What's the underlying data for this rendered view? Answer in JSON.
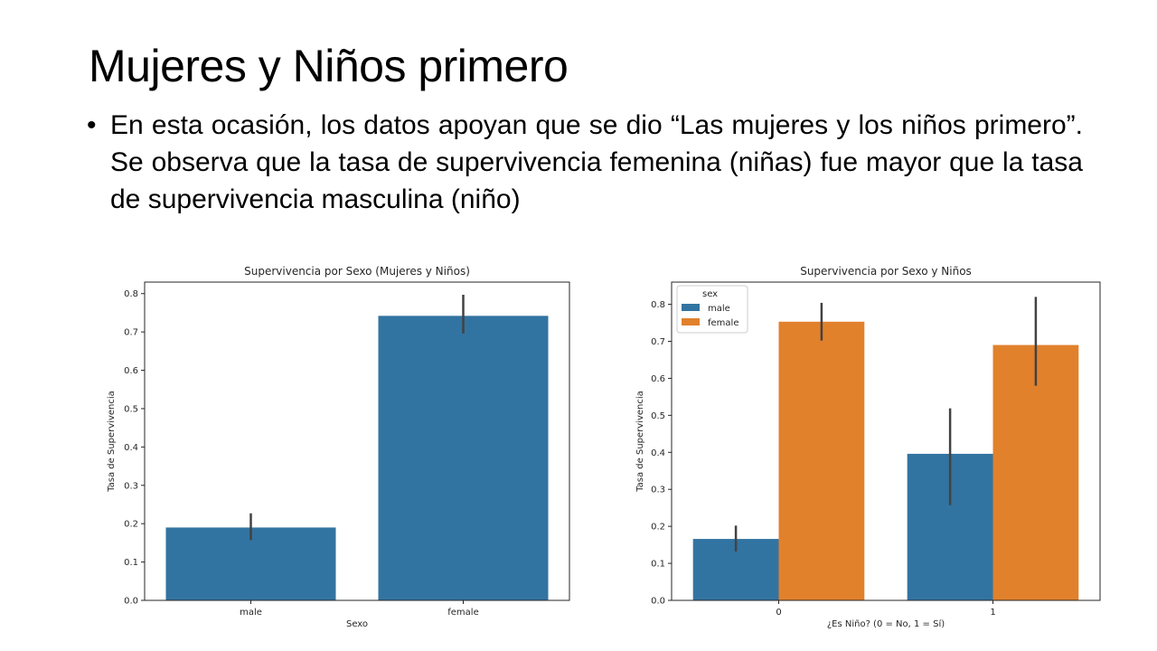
{
  "slide": {
    "title": "Mujeres y Niños primero",
    "bullet": "En esta ocasión, los datos apoyan que se dio “Las mujeres y los niños primero”. Se observa que la tasa de supervivencia femenina (niñas) fue mayor que la tasa de supervivencia masculina (niño)"
  },
  "colors": {
    "male": "#3274a1",
    "female": "#e1812c",
    "errorbar": "#424242"
  },
  "chart_data": [
    {
      "type": "bar",
      "title": "Supervivencia por Sexo (Mujeres y Niños)",
      "xlabel": "Sexo",
      "ylabel": "Tasa de Supervivencia",
      "categories": [
        "male",
        "female"
      ],
      "values": [
        0.19,
        0.742
      ],
      "error_low": [
        0.157,
        0.696
      ],
      "error_high": [
        0.227,
        0.797
      ],
      "ylim": [
        0,
        0.83
      ],
      "yticks": [
        "0.0",
        "0.1",
        "0.2",
        "0.3",
        "0.4",
        "0.5",
        "0.6",
        "0.7",
        "0.8"
      ],
      "grid": false
    },
    {
      "type": "bar",
      "title": "Supervivencia por Sexo y Niños",
      "xlabel": "¿Es Niño? (0 = No, 1 = Sí)",
      "ylabel": "Tasa de Supervivencia",
      "categories": [
        "0",
        "1"
      ],
      "legend_title": "sex",
      "legend_position": "top-left",
      "series": [
        {
          "name": "male",
          "values": [
            0.166,
            0.396
          ],
          "error_low": [
            0.132,
            0.257
          ],
          "error_high": [
            0.202,
            0.519
          ]
        },
        {
          "name": "female",
          "values": [
            0.753,
            0.69
          ],
          "error_low": [
            0.702,
            0.58
          ],
          "error_high": [
            0.804,
            0.82
          ]
        }
      ],
      "ylim": [
        0,
        0.86
      ],
      "yticks": [
        "0.0",
        "0.1",
        "0.2",
        "0.3",
        "0.4",
        "0.5",
        "0.6",
        "0.7",
        "0.8"
      ],
      "grid": false
    }
  ]
}
